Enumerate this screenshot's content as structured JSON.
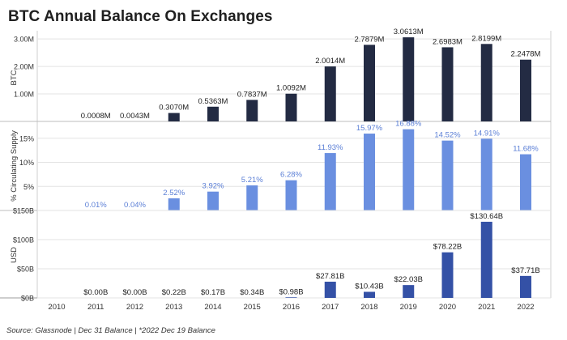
{
  "title": "BTC Annual Balance On Exchanges",
  "source": "Source: Glassnode | Dec 31 Balance | *2022 Dec 19 Balance",
  "colors": {
    "btc": "#232b43",
    "pct": "#6a8fe0",
    "pct_label": "#5b7fd6",
    "usd": "#3451a6",
    "grid": "#e3e3e3",
    "panel_border": "#cfcfcf"
  },
  "chart_data": [
    {
      "type": "bar",
      "panel": "btc",
      "ylabel": "BTC",
      "ylim": [
        0,
        3.3
      ],
      "yticks": [
        1.0,
        2.0,
        3.0
      ],
      "ytick_labels": [
        "1.00M",
        "2.00M",
        "3.00M"
      ],
      "categories": [
        "2011",
        "2012",
        "2013",
        "2014",
        "2015",
        "2016",
        "2017",
        "2018",
        "2019",
        "2020",
        "2021",
        "2022"
      ],
      "values": [
        0.0008,
        0.0043,
        0.307,
        0.5363,
        0.7837,
        1.0092,
        2.0014,
        2.7879,
        3.0613,
        2.6983,
        2.8199,
        2.2478
      ],
      "labels": [
        "0.0008M",
        "0.0043M",
        "0.3070M",
        "0.5363M",
        "0.7837M",
        "1.0092M",
        "2.0014M",
        "2.7879M",
        "3.0613M",
        "2.6983M",
        "2.8199M",
        "2.2478M"
      ]
    },
    {
      "type": "bar",
      "panel": "pct",
      "ylabel": "% Circulating Supply",
      "ylim": [
        0,
        18.5
      ],
      "yticks": [
        5,
        10,
        15
      ],
      "ytick_labels": [
        "5%",
        "10%",
        "15%"
      ],
      "categories": [
        "2011",
        "2012",
        "2013",
        "2014",
        "2015",
        "2016",
        "2017",
        "2018",
        "2019",
        "2020",
        "2021",
        "2022"
      ],
      "values": [
        0.01,
        0.04,
        2.52,
        3.92,
        5.21,
        6.28,
        11.93,
        15.97,
        16.88,
        14.52,
        14.91,
        11.68
      ],
      "labels": [
        "0.01%",
        "0.04%",
        "2.52%",
        "3.92%",
        "5.21%",
        "6.28%",
        "11.93%",
        "15.97%",
        "16.88%",
        "14.52%",
        "14.91%",
        "11.68%"
      ]
    },
    {
      "type": "bar",
      "panel": "usd",
      "ylabel": "USD",
      "ylim": [
        0,
        150
      ],
      "yticks": [
        0,
        50,
        100,
        150
      ],
      "ytick_labels": [
        "$0B",
        "$50B",
        "$100B",
        "$150B"
      ],
      "categories": [
        "2011",
        "2012",
        "2013",
        "2014",
        "2015",
        "2016",
        "2017",
        "2018",
        "2019",
        "2020",
        "2021",
        "2022"
      ],
      "values": [
        0.0,
        0.0,
        0.22,
        0.17,
        0.34,
        0.98,
        27.81,
        10.43,
        22.03,
        78.22,
        130.64,
        37.71
      ],
      "labels": [
        "$0.00B",
        "$0.00B",
        "$0.22B",
        "$0.17B",
        "$0.34B",
        "$0.98B",
        "$27.81B",
        "$10.43B",
        "$22.03B",
        "$78.22B",
        "$130.64B",
        "$37.71B"
      ]
    }
  ],
  "x_axis": {
    "ticks": [
      "2010",
      "2011",
      "2012",
      "2013",
      "2014",
      "2015",
      "2016",
      "2017",
      "2018",
      "2019",
      "2020",
      "2021",
      "2022"
    ]
  }
}
